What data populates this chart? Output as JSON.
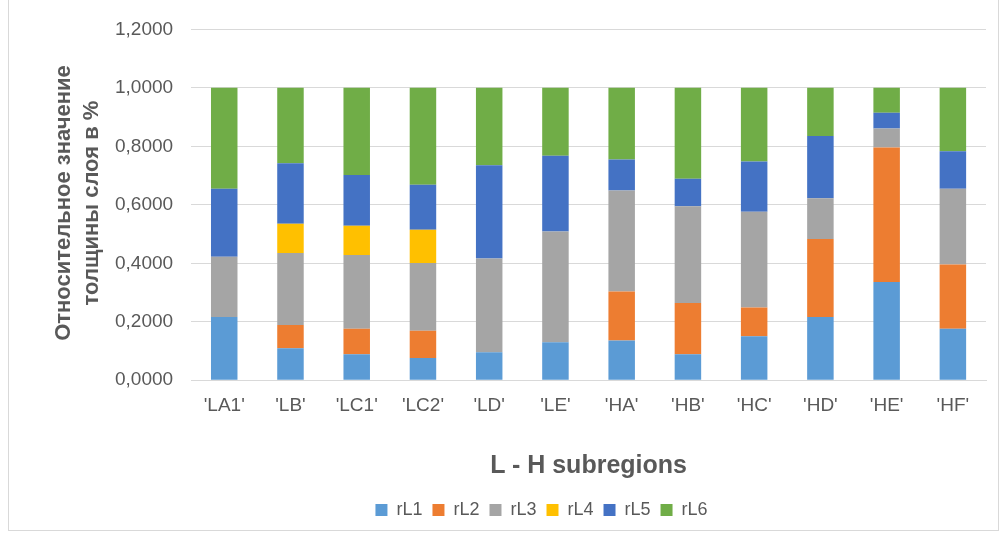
{
  "chart_data": {
    "type": "bar",
    "stacked": true,
    "xlabel": "L - H subregions",
    "ylabel": "Относительное значение толщины слоя в %",
    "categories": [
      "'LA1'",
      "'LB'",
      "'LC1'",
      "'LC2'",
      "'LD'",
      "'LE'",
      "'HA'",
      "'HB'",
      "'HC'",
      "'HD'",
      "'HE'",
      "'HF'"
    ],
    "series": [
      {
        "name": "rL1",
        "color": "#5b9bd5",
        "values": [
          0.216,
          0.109,
          0.089,
          0.076,
          0.096,
          0.13,
          0.136,
          0.089,
          0.15,
          0.216,
          0.336,
          0.176
        ]
      },
      {
        "name": "rL2",
        "color": "#ed7d31",
        "values": [
          0,
          0.08,
          0.087,
          0.093,
          0,
          0,
          0.167,
          0.175,
          0.099,
          0.267,
          0.46,
          0.22
        ]
      },
      {
        "name": "rL3",
        "color": "#a5a5a5",
        "values": [
          0.206,
          0.246,
          0.252,
          0.232,
          0.32,
          0.379,
          0.346,
          0.331,
          0.327,
          0.139,
          0.065,
          0.259
        ]
      },
      {
        "name": "rL4",
        "color": "#ffc000",
        "values": [
          0,
          0.1,
          0.1,
          0.114,
          0,
          0,
          0,
          0,
          0,
          0,
          0,
          0
        ]
      },
      {
        "name": "rL5",
        "color": "#4472c4",
        "values": [
          0.233,
          0.207,
          0.174,
          0.154,
          0.319,
          0.259,
          0.106,
          0.094,
          0.172,
          0.213,
          0.054,
          0.128
        ]
      },
      {
        "name": "rL6",
        "color": "#70ad47",
        "values": [
          0.345,
          0.258,
          0.298,
          0.331,
          0.265,
          0.232,
          0.245,
          0.311,
          0.252,
          0.165,
          0.085,
          0.217
        ]
      }
    ],
    "ylim": [
      0,
      1.2
    ],
    "yticks": [
      {
        "value": 0,
        "label": "0,0000"
      },
      {
        "value": 0.2,
        "label": "0,2000"
      },
      {
        "value": 0.4,
        "label": "0,4000"
      },
      {
        "value": 0.6,
        "label": "0,6000"
      },
      {
        "value": 0.8,
        "label": "0,8000"
      },
      {
        "value": 1.0,
        "label": "1,0000"
      },
      {
        "value": 1.2,
        "label": "1,2000"
      }
    ],
    "grid": "y",
    "legend": "bottom"
  }
}
